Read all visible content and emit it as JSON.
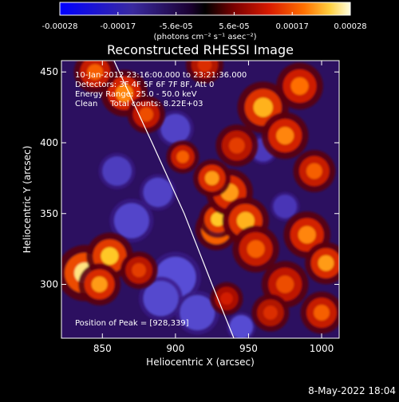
{
  "chart_data": {
    "type": "heatmap",
    "title": "Reconstructed RHESSI Image",
    "xlabel": "Heliocentric X (arcsec)",
    "ylabel": "Heliocentric Y (arcsec)",
    "xlim": [
      822,
      1012
    ],
    "ylim": [
      262,
      458
    ],
    "x_ticks": [
      850,
      900,
      950,
      1000
    ],
    "y_ticks": [
      300,
      350,
      400,
      450
    ],
    "colorbar": {
      "ticks": [
        "-0.00028",
        "-0.00017",
        "-5.6e-05",
        "5.6e-05",
        "0.00017",
        "0.00028"
      ],
      "range": [
        -0.00028,
        0.00028
      ],
      "units": "(photons cm⁻² s⁻¹ asec⁻²)"
    },
    "annotations": [
      "10-Jan-2012 23:16:00.000 to 23:21:36.000",
      "Detectors: 3F 4F 5F 6F 7F 8F, Att 0",
      "Energy Range: 25.0 - 50.0 keV",
      "Clean     Total counts: 8.22E+03"
    ],
    "peak_label": "Position of Peak = [928,339]",
    "peak": [
      928,
      339
    ],
    "limb_points": [
      [
        858,
        458
      ],
      [
        884,
        400
      ],
      [
        906,
        350
      ],
      [
        925,
        300
      ],
      [
        940,
        262
      ]
    ],
    "hot_regions": [
      {
        "x": 928,
        "y": 339,
        "level": 1.0,
        "radius": 9
      },
      {
        "x": 929,
        "y": 346,
        "level": 0.8,
        "radius": 8
      },
      {
        "x": 937,
        "y": 365,
        "level": 0.7,
        "radius": 10
      },
      {
        "x": 948,
        "y": 345,
        "level": 0.75,
        "radius": 10
      },
      {
        "x": 955,
        "y": 325,
        "level": 0.55,
        "radius": 10
      },
      {
        "x": 925,
        "y": 375,
        "level": 0.7,
        "radius": 8
      },
      {
        "x": 905,
        "y": 390,
        "level": 0.55,
        "radius": 7
      },
      {
        "x": 838,
        "y": 308,
        "level": 0.9,
        "radius": 12
      },
      {
        "x": 855,
        "y": 320,
        "level": 0.8,
        "radius": 10
      },
      {
        "x": 848,
        "y": 300,
        "level": 0.7,
        "radius": 9
      },
      {
        "x": 875,
        "y": 310,
        "level": 0.45,
        "radius": 8
      },
      {
        "x": 865,
        "y": 435,
        "level": 0.65,
        "radius": 10
      },
      {
        "x": 845,
        "y": 450,
        "level": 0.55,
        "radius": 9
      },
      {
        "x": 880,
        "y": 420,
        "level": 0.5,
        "radius": 8
      },
      {
        "x": 960,
        "y": 425,
        "level": 0.75,
        "radius": 11
      },
      {
        "x": 985,
        "y": 440,
        "level": 0.6,
        "radius": 10
      },
      {
        "x": 975,
        "y": 405,
        "level": 0.65,
        "radius": 10
      },
      {
        "x": 995,
        "y": 380,
        "level": 0.55,
        "radius": 9
      },
      {
        "x": 990,
        "y": 335,
        "level": 0.65,
        "radius": 10
      },
      {
        "x": 1003,
        "y": 315,
        "level": 0.7,
        "radius": 9
      },
      {
        "x": 975,
        "y": 300,
        "level": 0.5,
        "radius": 10
      },
      {
        "x": 1000,
        "y": 280,
        "level": 0.55,
        "radius": 9
      },
      {
        "x": 965,
        "y": 280,
        "level": 0.4,
        "radius": 8
      },
      {
        "x": 935,
        "y": 290,
        "level": 0.35,
        "radius": 7
      },
      {
        "x": 942,
        "y": 398,
        "level": 0.45,
        "radius": 9
      },
      {
        "x": 920,
        "y": 455,
        "level": 0.4,
        "radius": 8
      }
    ],
    "cold_regions": [
      {
        "x": 900,
        "y": 305,
        "level": 0.8,
        "radius": 14
      },
      {
        "x": 890,
        "y": 290,
        "level": 0.7,
        "radius": 12
      },
      {
        "x": 915,
        "y": 280,
        "level": 0.7,
        "radius": 12
      },
      {
        "x": 870,
        "y": 345,
        "level": 0.65,
        "radius": 12
      },
      {
        "x": 888,
        "y": 365,
        "level": 0.6,
        "radius": 10
      },
      {
        "x": 900,
        "y": 410,
        "level": 0.6,
        "radius": 10
      },
      {
        "x": 860,
        "y": 380,
        "level": 0.5,
        "radius": 10
      },
      {
        "x": 960,
        "y": 395,
        "level": 0.45,
        "radius": 8
      },
      {
        "x": 945,
        "y": 270,
        "level": 0.75,
        "radius": 8
      },
      {
        "x": 975,
        "y": 355,
        "level": 0.4,
        "radius": 8
      }
    ]
  },
  "footer": {
    "date": "8-May-2022 18:04"
  }
}
